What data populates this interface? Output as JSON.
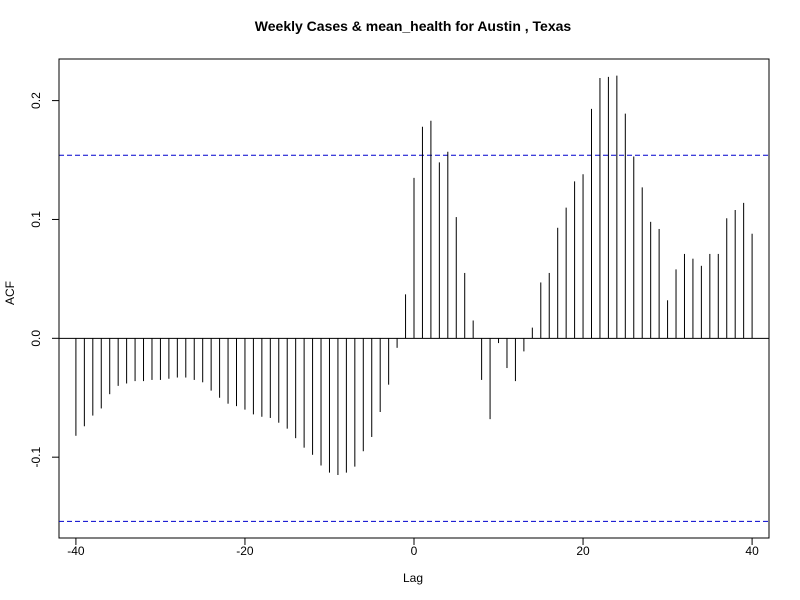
{
  "chart_data": {
    "type": "bar",
    "title": "Weekly Cases & mean_health for Austin , Texas",
    "xlabel": "Lag",
    "ylabel": "ACF",
    "xlim": [
      -42,
      42
    ],
    "ylim": [
      -0.168,
      0.235
    ],
    "x_ticks": [
      -40,
      -20,
      0,
      20,
      40
    ],
    "x_tick_labels": [
      "-40",
      "-20",
      "0",
      "20",
      "40"
    ],
    "y_ticks": [
      -0.1,
      0.0,
      0.1,
      0.2
    ],
    "y_tick_labels": [
      "-0.1",
      "0.0",
      "0.1",
      "0.2"
    ],
    "confidence_bound": 0.154,
    "confidence_color": "#0000cd",
    "grid": false,
    "x": [
      -40,
      -39,
      -38,
      -37,
      -36,
      -35,
      -34,
      -33,
      -32,
      -31,
      -30,
      -29,
      -28,
      -27,
      -26,
      -25,
      -24,
      -23,
      -22,
      -21,
      -20,
      -19,
      -18,
      -17,
      -16,
      -15,
      -14,
      -13,
      -12,
      -11,
      -10,
      -9,
      -8,
      -7,
      -6,
      -5,
      -4,
      -3,
      -2,
      -1,
      0,
      1,
      2,
      3,
      4,
      5,
      6,
      7,
      8,
      9,
      10,
      11,
      12,
      13,
      14,
      15,
      16,
      17,
      18,
      19,
      20,
      21,
      22,
      23,
      24,
      25,
      26,
      27,
      28,
      29,
      30,
      31,
      32,
      33,
      34,
      35,
      36,
      37,
      38,
      39,
      40
    ],
    "values": [
      -0.082,
      -0.074,
      -0.065,
      -0.059,
      -0.047,
      -0.04,
      -0.038,
      -0.036,
      -0.036,
      -0.035,
      -0.035,
      -0.034,
      -0.033,
      -0.033,
      -0.035,
      -0.037,
      -0.044,
      -0.05,
      -0.055,
      -0.057,
      -0.06,
      -0.064,
      -0.066,
      -0.067,
      -0.071,
      -0.076,
      -0.084,
      -0.092,
      -0.098,
      -0.107,
      -0.113,
      -0.115,
      -0.113,
      -0.108,
      -0.095,
      -0.083,
      -0.062,
      -0.039,
      -0.008,
      0.037,
      0.135,
      0.178,
      0.183,
      0.148,
      0.157,
      0.102,
      0.055,
      0.015,
      -0.035,
      -0.068,
      -0.004,
      -0.025,
      -0.036,
      -0.011,
      0.009,
      0.047,
      0.055,
      0.093,
      0.11,
      0.132,
      0.138,
      0.193,
      0.219,
      0.22,
      0.221,
      0.189,
      0.153,
      0.127,
      0.098,
      0.092,
      0.032,
      0.058,
      0.071,
      0.067,
      0.061,
      0.071,
      0.071,
      0.101,
      0.108,
      0.114,
      0.088
    ]
  }
}
